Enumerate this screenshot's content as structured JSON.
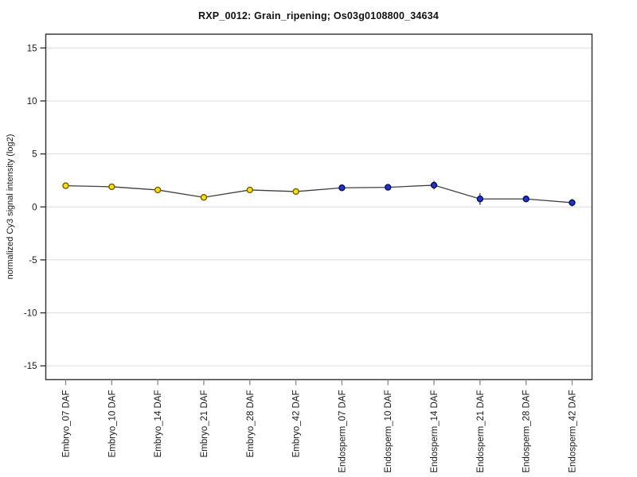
{
  "page": {
    "background": "#ffffff"
  },
  "chart_data": {
    "type": "line",
    "title": "RXP_0012: Grain_ripening; Os03g0108800_34634",
    "ylabel": "normalized Cy3 signal intensity (log2)",
    "xlabel": "",
    "categories": [
      "Embryo_07 DAF",
      "Embryo_10 DAF",
      "Embryo_14 DAF",
      "Embryo_21 DAF",
      "Embryo_28 DAF",
      "Embryo_42 DAF",
      "Endosperm_07 DAF",
      "Endosperm_10 DAF",
      "Endosperm_14 DAF",
      "Endosperm_21 DAF",
      "Endosperm_28 DAF",
      "Endosperm_42 DAF"
    ],
    "series": [
      {
        "name": "normalized Cy3 signal intensity (log2)",
        "values": [
          2.0,
          1.9,
          1.6,
          0.9,
          1.6,
          1.45,
          1.8,
          1.85,
          2.05,
          0.75,
          0.75,
          0.4
        ],
        "stderr": [
          0.3,
          0.25,
          0.3,
          0.3,
          0.25,
          0.25,
          0.25,
          0.25,
          0.4,
          0.55,
          0.25,
          0.35
        ],
        "point_groups": [
          "Embryo",
          "Embryo",
          "Embryo",
          "Embryo",
          "Embryo",
          "Embryo",
          "Endosperm",
          "Endosperm",
          "Endosperm",
          "Endosperm",
          "Endosperm",
          "Endosperm"
        ]
      }
    ],
    "group_colors": {
      "Embryo": {
        "fill": "#ffe000",
        "stroke": "#6b6200"
      },
      "Endosperm": {
        "fill": "#2133cc",
        "stroke": "#000e66"
      }
    },
    "line_color": "#3f3f3f",
    "grid_color": "#dcdcdc",
    "frame_color": "#3a3a3a",
    "y_tick_color": "#2b2b2b",
    "x_tick_color": "#8a8a8a",
    "yticks": [
      -15,
      -10,
      -5,
      0,
      5,
      10,
      15
    ],
    "ylim": [
      -16.3,
      16.3
    ],
    "grid": true,
    "legend_position": "none"
  }
}
